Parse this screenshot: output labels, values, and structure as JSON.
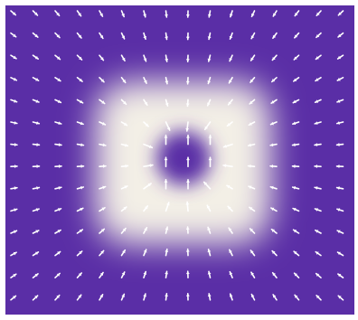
{
  "field": {
    "background_color": "#5a2ea6",
    "glow_color": "#f3efe6",
    "arrow_color": "#ffffff",
    "grid_cols": 16,
    "grid_rows": 14,
    "description_visible_text": []
  }
}
